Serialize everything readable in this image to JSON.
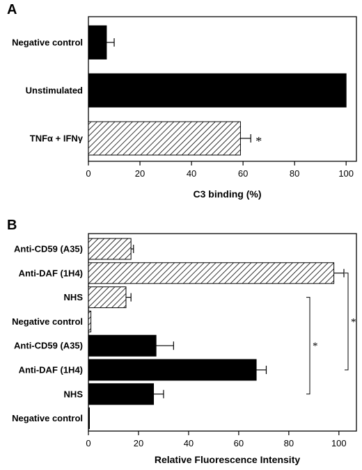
{
  "chart_data": [
    {
      "panel": "A",
      "type": "bar",
      "orientation": "horizontal",
      "categories": [
        "Negative control",
        "Unstimulated",
        "TNFα + IFNγ"
      ],
      "values": [
        7,
        100,
        59
      ],
      "errors": [
        3,
        0,
        4
      ],
      "fills": [
        "solid",
        "solid",
        "hatched"
      ],
      "annotations": [
        {
          "category_index": 2,
          "text": "*"
        }
      ],
      "xlabel": "C3 binding (%)",
      "xlim": [
        0,
        104
      ],
      "xticks": [
        0,
        20,
        40,
        60,
        80,
        100
      ],
      "grid": false
    },
    {
      "panel": "B",
      "type": "bar",
      "orientation": "horizontal",
      "categories": [
        "Anti-CD59 (A35)",
        "Anti-DAF (1H4)",
        "NHS",
        "Negative control",
        "Anti-CD59 (A35)",
        "Anti-DAF (1H4)",
        "NHS",
        "Negative control"
      ],
      "values": [
        17,
        98,
        15,
        1,
        27,
        67,
        26,
        0.4
      ],
      "errors": [
        1,
        4,
        2,
        0,
        7,
        4,
        4,
        0
      ],
      "fills": [
        "hatched",
        "hatched",
        "hatched",
        "hatched",
        "solid",
        "solid",
        "solid",
        "solid"
      ],
      "significance": [
        {
          "from_index": 2,
          "to_index": 6,
          "text": "*"
        },
        {
          "from_index": 1,
          "to_index": 5,
          "text": "*"
        }
      ],
      "xlabel": "Relative Fluorescence Intensity",
      "xlim": [
        0,
        107
      ],
      "xticks": [
        0,
        20,
        40,
        60,
        80,
        100
      ],
      "grid": false
    }
  ]
}
